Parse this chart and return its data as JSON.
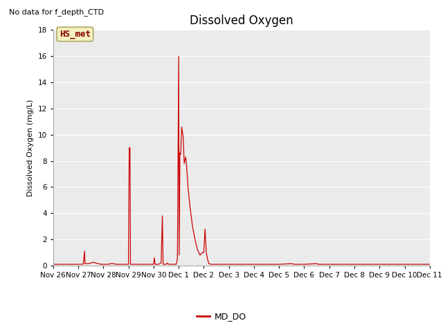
{
  "title": "Dissolved Oxygen",
  "ylabel": "Dissolved Oxygen (mg/L)",
  "note": "No data for f_depth_CTD",
  "legend_label": "MD_DO",
  "legend_label2": "HS_met",
  "ylim": [
    0,
    18
  ],
  "line_color": "#cc0000",
  "bg_color": "#ebebeb",
  "grid_color": "#ffffff",
  "fig_color": "#ffffff",
  "hs_met_box_color": "#f5f0c0",
  "hs_met_text_color": "#880000",
  "hs_met_edge_color": "#aaaa66",
  "title_fontsize": 12,
  "label_fontsize": 8,
  "tick_fontsize": 7.5,
  "note_fontsize": 8,
  "data_points": [
    [
      0.0,
      0.1
    ],
    [
      0.1,
      0.1
    ],
    [
      0.2,
      0.1
    ],
    [
      0.4,
      0.1
    ],
    [
      0.6,
      0.1
    ],
    [
      0.8,
      0.1
    ],
    [
      1.0,
      0.1
    ],
    [
      1.1,
      0.1
    ],
    [
      1.2,
      0.12
    ],
    [
      1.25,
      1.1
    ],
    [
      1.27,
      0.15
    ],
    [
      1.4,
      0.15
    ],
    [
      1.5,
      0.2
    ],
    [
      1.6,
      0.25
    ],
    [
      1.7,
      0.2
    ],
    [
      1.8,
      0.15
    ],
    [
      1.9,
      0.1
    ],
    [
      2.0,
      0.1
    ],
    [
      2.1,
      0.1
    ],
    [
      2.2,
      0.1
    ],
    [
      2.3,
      0.15
    ],
    [
      2.4,
      0.15
    ],
    [
      2.5,
      0.1
    ],
    [
      2.6,
      0.1
    ],
    [
      2.7,
      0.1
    ],
    [
      2.8,
      0.1
    ],
    [
      3.0,
      0.1
    ],
    [
      3.03,
      9.0
    ],
    [
      3.06,
      9.0
    ],
    [
      3.08,
      0.1
    ],
    [
      3.15,
      0.1
    ],
    [
      3.25,
      0.1
    ],
    [
      3.4,
      0.1
    ],
    [
      3.6,
      0.1
    ],
    [
      3.8,
      0.1
    ],
    [
      4.0,
      0.1
    ],
    [
      4.03,
      0.6
    ],
    [
      4.06,
      0.1
    ],
    [
      4.1,
      0.1
    ],
    [
      4.2,
      0.1
    ],
    [
      4.3,
      0.2
    ],
    [
      4.35,
      3.8
    ],
    [
      4.38,
      0.1
    ],
    [
      4.5,
      0.1
    ],
    [
      4.55,
      0.2
    ],
    [
      4.6,
      0.1
    ],
    [
      4.8,
      0.1
    ],
    [
      4.9,
      0.1
    ],
    [
      4.95,
      0.5
    ],
    [
      5.0,
      16.0
    ],
    [
      5.02,
      0.8
    ],
    [
      5.05,
      8.6
    ],
    [
      5.08,
      8.5
    ],
    [
      5.12,
      10.6
    ],
    [
      5.18,
      9.8
    ],
    [
      5.22,
      7.8
    ],
    [
      5.28,
      8.3
    ],
    [
      5.32,
      7.5
    ],
    [
      5.38,
      5.8
    ],
    [
      5.45,
      4.5
    ],
    [
      5.55,
      3.0
    ],
    [
      5.65,
      2.0
    ],
    [
      5.75,
      1.2
    ],
    [
      5.85,
      0.8
    ],
    [
      5.95,
      1.0
    ],
    [
      6.0,
      1.0
    ],
    [
      6.05,
      2.8
    ],
    [
      6.1,
      1.0
    ],
    [
      6.15,
      0.5
    ],
    [
      6.2,
      0.15
    ],
    [
      6.3,
      0.1
    ],
    [
      6.5,
      0.1
    ],
    [
      7.0,
      0.1
    ],
    [
      8.0,
      0.1
    ],
    [
      9.0,
      0.1
    ],
    [
      9.5,
      0.15
    ],
    [
      9.6,
      0.1
    ],
    [
      10.0,
      0.1
    ],
    [
      10.5,
      0.15
    ],
    [
      10.55,
      0.1
    ],
    [
      11.0,
      0.1
    ],
    [
      15.0,
      0.1
    ]
  ]
}
